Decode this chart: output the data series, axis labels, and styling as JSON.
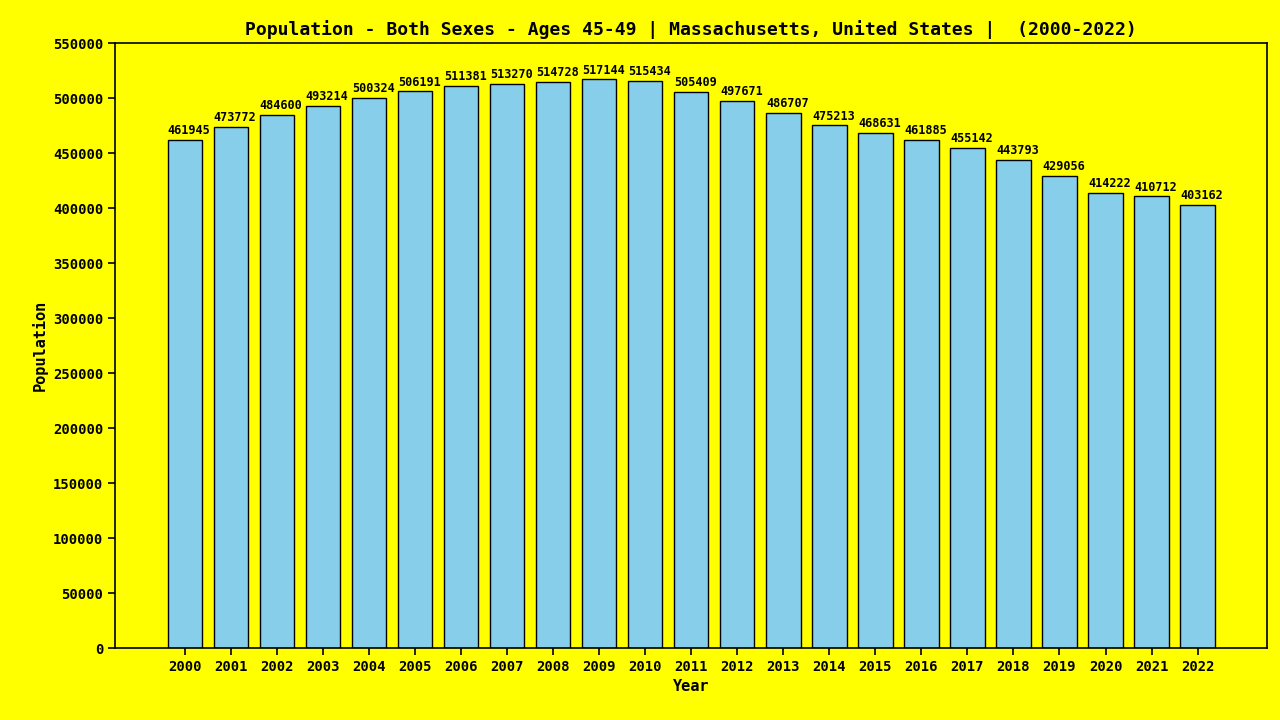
{
  "title": "Population - Both Sexes - Ages 45-49 | Massachusetts, United States |  (2000-2022)",
  "xlabel": "Year",
  "ylabel": "Population",
  "background_color": "#FFFF00",
  "bar_color": "#87CEEB",
  "bar_edge_color": "#000000",
  "years": [
    2000,
    2001,
    2002,
    2003,
    2004,
    2005,
    2006,
    2007,
    2008,
    2009,
    2010,
    2011,
    2012,
    2013,
    2014,
    2015,
    2016,
    2017,
    2018,
    2019,
    2020,
    2021,
    2022
  ],
  "values": [
    461945,
    473772,
    484600,
    493214,
    500324,
    506191,
    511381,
    513270,
    514728,
    517144,
    515434,
    505409,
    497671,
    486707,
    475213,
    468631,
    461885,
    455142,
    443793,
    429056,
    414222,
    410712,
    403162
  ],
  "ylim": [
    0,
    550000
  ],
  "yticks": [
    0,
    50000,
    100000,
    150000,
    200000,
    250000,
    300000,
    350000,
    400000,
    450000,
    500000,
    550000
  ],
  "title_fontsize": 13,
  "axis_label_fontsize": 11,
  "tick_fontsize": 10,
  "bar_label_fontsize": 8.5
}
